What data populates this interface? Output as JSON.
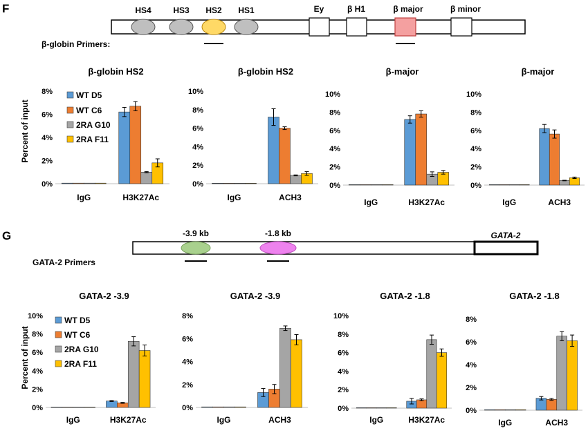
{
  "panel_F": {
    "letter": "F",
    "elements": {
      "hs4": "HS4",
      "hs3": "HS3",
      "hs2": "HS2",
      "hs1": "HS1",
      "ey": "Ey",
      "bh1": "β H1",
      "bmajor": "β  major",
      "bminor": "β minor"
    },
    "primers_label": "β-globin Primers:"
  },
  "panel_G": {
    "letter": "G",
    "elements": {
      "kb39": "-3.9 kb",
      "kb18": "-1.8 kb",
      "gene": "GATA-2"
    },
    "primers_label": "GATA-2   Primers"
  },
  "legend": [
    "WT D5",
    "WT C6",
    "2RA G10",
    "2RA F11"
  ],
  "ylabel": "Percent of input",
  "colors": {
    "wt_d5": "#5b9bd5",
    "wt_c6": "#ed7d31",
    "ra_g10": "#a5a5a5",
    "ra_f11": "#ffc000",
    "hs2": "#ffd966",
    "bmajor": "#f4a0a0",
    "hs_grey": "#bfbfbf",
    "m39": "#a9d18e",
    "m18": "#ee82ee"
  },
  "chart_data": [
    {
      "type": "bar",
      "title": "β-globin  HS2",
      "categories": [
        "IgG",
        "H3K27Ac"
      ],
      "yticks": [
        "0%",
        "2%",
        "4%",
        "6%",
        "8%"
      ],
      "ylim": [
        0,
        8
      ],
      "series": [
        {
          "name": "WT D5",
          "values": [
            0.05,
            6.2
          ],
          "err": [
            0,
            0.4
          ]
        },
        {
          "name": "WT C6",
          "values": [
            0.05,
            6.7
          ],
          "err": [
            0,
            0.4
          ]
        },
        {
          "name": "2RA G10",
          "values": [
            0.05,
            1.0
          ],
          "err": [
            0,
            0.05
          ]
        },
        {
          "name": "2RA F11",
          "values": [
            0.05,
            1.8
          ],
          "err": [
            0,
            0.35
          ]
        }
      ]
    },
    {
      "type": "bar",
      "title": "β-globin  HS2",
      "categories": [
        "IgG",
        "ACH3"
      ],
      "yticks": [
        "0%",
        "2%",
        "4%",
        "6%",
        "8%",
        "10%"
      ],
      "ylim": [
        0,
        10
      ],
      "series": [
        {
          "name": "WT D5",
          "values": [
            0.05,
            7.2
          ],
          "err": [
            0,
            0.9
          ]
        },
        {
          "name": "WT C6",
          "values": [
            0.05,
            6.0
          ],
          "err": [
            0,
            0.15
          ]
        },
        {
          "name": "2RA G10",
          "values": [
            0.05,
            0.9
          ],
          "err": [
            0,
            0.05
          ]
        },
        {
          "name": "2RA F11",
          "values": [
            0.05,
            1.1
          ],
          "err": [
            0,
            0.2
          ]
        }
      ]
    },
    {
      "type": "bar",
      "title": "β-major",
      "categories": [
        "IgG",
        "H3K27Ac"
      ],
      "yticks": [
        "0%",
        "2%",
        "4%",
        "6%",
        "8%",
        "10%"
      ],
      "ylim": [
        0,
        10
      ],
      "series": [
        {
          "name": "WT D5",
          "values": [
            0.05,
            7.2
          ],
          "err": [
            0,
            0.4
          ]
        },
        {
          "name": "WT C6",
          "values": [
            0.05,
            7.8
          ],
          "err": [
            0,
            0.35
          ]
        },
        {
          "name": "2RA G10",
          "values": [
            0.05,
            1.2
          ],
          "err": [
            0,
            0.25
          ]
        },
        {
          "name": "2RA F11",
          "values": [
            0.05,
            1.4
          ],
          "err": [
            0,
            0.2
          ]
        }
      ]
    },
    {
      "type": "bar",
      "title": "β-major",
      "categories": [
        "IgG",
        "ACH3"
      ],
      "yticks": [
        "0%",
        "2%",
        "4%",
        "6%",
        "8%",
        "10%"
      ],
      "ylim": [
        0,
        10
      ],
      "series": [
        {
          "name": "WT D5",
          "values": [
            0.05,
            6.2
          ],
          "err": [
            0,
            0.45
          ]
        },
        {
          "name": "WT C6",
          "values": [
            0.05,
            5.6
          ],
          "err": [
            0,
            0.45
          ]
        },
        {
          "name": "2RA G10",
          "values": [
            0.05,
            0.5
          ],
          "err": [
            0,
            0.03
          ]
        },
        {
          "name": "2RA F11",
          "values": [
            0.05,
            0.8
          ],
          "err": [
            0,
            0.08
          ]
        }
      ]
    },
    {
      "type": "bar",
      "title": "GATA-2  -3.9",
      "categories": [
        "IgG",
        "H3K27Ac"
      ],
      "yticks": [
        "0%",
        "2%",
        "4%",
        "6%",
        "8%",
        "10%"
      ],
      "ylim": [
        0,
        10
      ],
      "series": [
        {
          "name": "WT D5",
          "values": [
            0.05,
            0.7
          ],
          "err": [
            0,
            0.05
          ]
        },
        {
          "name": "WT C6",
          "values": [
            0.05,
            0.5
          ],
          "err": [
            0,
            0.05
          ]
        },
        {
          "name": "2RA G10",
          "values": [
            0.05,
            7.2
          ],
          "err": [
            0,
            0.5
          ]
        },
        {
          "name": "2RA F11",
          "values": [
            0.05,
            6.2
          ],
          "err": [
            0,
            0.6
          ]
        }
      ]
    },
    {
      "type": "bar",
      "title": "GATA-2  -3.9",
      "categories": [
        "IgG",
        "ACH3"
      ],
      "yticks": [
        "0%",
        "2%",
        "4%",
        "6%",
        "8%"
      ],
      "ylim": [
        0,
        8
      ],
      "series": [
        {
          "name": "WT D5",
          "values": [
            0.05,
            1.3
          ],
          "err": [
            0,
            0.35
          ]
        },
        {
          "name": "WT C6",
          "values": [
            0.05,
            1.6
          ],
          "err": [
            0,
            0.4
          ]
        },
        {
          "name": "2RA G10",
          "values": [
            0.05,
            6.9
          ],
          "err": [
            0,
            0.2
          ]
        },
        {
          "name": "2RA F11",
          "values": [
            0.05,
            5.9
          ],
          "err": [
            0,
            0.45
          ]
        }
      ]
    },
    {
      "type": "bar",
      "title": "GATA-2  -1.8",
      "categories": [
        "IgG",
        "H3K27Ac"
      ],
      "yticks": [
        "0%",
        "2%",
        "4%",
        "6%",
        "8%",
        "10%"
      ],
      "ylim": [
        0,
        10
      ],
      "series": [
        {
          "name": "WT D5",
          "values": [
            0.05,
            0.75
          ],
          "err": [
            0,
            0.3
          ]
        },
        {
          "name": "WT C6",
          "values": [
            0.05,
            0.9
          ],
          "err": [
            0,
            0.1
          ]
        },
        {
          "name": "2RA G10",
          "values": [
            0.05,
            7.4
          ],
          "err": [
            0,
            0.5
          ]
        },
        {
          "name": "2RA F11",
          "values": [
            0.05,
            6.0
          ],
          "err": [
            0,
            0.4
          ]
        }
      ]
    },
    {
      "type": "bar",
      "title": "GATA-2  -1.8",
      "categories": [
        "IgG",
        "ACH3"
      ],
      "yticks": [
        "0%",
        "2%",
        "4%",
        "6%",
        "8%"
      ],
      "ylim": [
        0,
        8
      ],
      "series": [
        {
          "name": "WT D5",
          "values": [
            0.05,
            1.05
          ],
          "err": [
            0,
            0.15
          ]
        },
        {
          "name": "WT C6",
          "values": [
            0.05,
            0.95
          ],
          "err": [
            0,
            0.08
          ]
        },
        {
          "name": "2RA G10",
          "values": [
            0.05,
            6.5
          ],
          "err": [
            0,
            0.4
          ]
        },
        {
          "name": "2RA F11",
          "values": [
            0.05,
            6.1
          ],
          "err": [
            0,
            0.5
          ]
        }
      ]
    }
  ]
}
